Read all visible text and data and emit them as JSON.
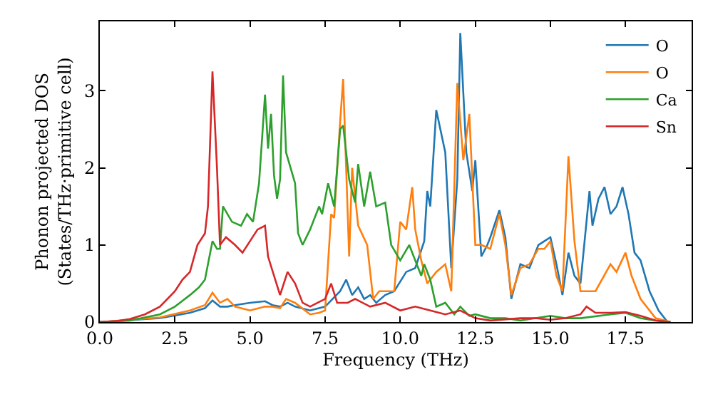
{
  "chart_data": {
    "type": "line",
    "xlabel": "Frequency (THz)",
    "ylabel": "Phonon projected DOS\n(States/THz·primitive cell)",
    "xlim": [
      0,
      19.7
    ],
    "ylim": [
      0,
      3.9
    ],
    "xticks": [
      {
        "value": 0,
        "label": "0.0"
      },
      {
        "value": 2.5,
        "label": "2.5"
      },
      {
        "value": 5,
        "label": "5.0"
      },
      {
        "value": 7.5,
        "label": "7.5"
      },
      {
        "value": 10,
        "label": "10.0"
      },
      {
        "value": 12.5,
        "label": "12.5"
      },
      {
        "value": 15,
        "label": "15.0"
      },
      {
        "value": 17.5,
        "label": "17.5"
      }
    ],
    "yticks": [
      0,
      1,
      2,
      3
    ],
    "legend": "top right",
    "marker": "none",
    "line_style": "solid",
    "series": [
      {
        "name": "O",
        "color": "#1f77b4",
        "x": [
          0,
          2,
          3,
          3.5,
          3.75,
          4.0,
          4.25,
          4.5,
          5,
          5.5,
          5.75,
          6,
          6.25,
          6.5,
          7,
          7.5,
          8.0,
          8.2,
          8.4,
          8.6,
          8.8,
          9,
          9.2,
          9.5,
          9.8,
          10.2,
          10.5,
          10.8,
          10.9,
          11.0,
          11.2,
          11.5,
          11.7,
          11.9,
          12.0,
          12.2,
          12.4,
          12.5,
          12.7,
          12.9,
          13.0,
          13.3,
          13.5,
          13.7,
          14.0,
          14.3,
          14.6,
          14.8,
          15.0,
          15.2,
          15.4,
          15.6,
          15.8,
          16.0,
          16.3,
          16.4,
          16.6,
          16.8,
          17.0,
          17.2,
          17.4,
          17.6,
          17.8,
          18.0,
          18.3,
          18.6,
          18.9
        ],
        "values": [
          0,
          0.05,
          0.12,
          0.18,
          0.28,
          0.2,
          0.2,
          0.22,
          0.25,
          0.27,
          0.22,
          0.2,
          0.25,
          0.2,
          0.15,
          0.2,
          0.4,
          0.55,
          0.35,
          0.45,
          0.3,
          0.35,
          0.25,
          0.35,
          0.4,
          0.65,
          0.7,
          1.05,
          1.7,
          1.5,
          2.75,
          2.2,
          0.7,
          1.85,
          3.75,
          2.2,
          1.7,
          2.1,
          0.85,
          1.0,
          1.1,
          1.45,
          1.1,
          0.3,
          0.75,
          0.7,
          1.0,
          1.05,
          1.1,
          0.75,
          0.35,
          0.9,
          0.6,
          0.5,
          1.7,
          1.25,
          1.6,
          1.75,
          1.4,
          1.5,
          1.75,
          1.4,
          0.9,
          0.8,
          0.4,
          0.15,
          0
        ]
      },
      {
        "name": "O",
        "color": "#ff7f0e",
        "x": [
          0,
          2,
          3,
          3.5,
          3.75,
          4.0,
          4.25,
          4.5,
          5,
          5.5,
          5.75,
          6,
          6.2,
          6.5,
          7,
          7.3,
          7.5,
          7.7,
          7.8,
          8.0,
          8.1,
          8.3,
          8.4,
          8.6,
          8.9,
          9.1,
          9.3,
          9.6,
          9.8,
          10.0,
          10.2,
          10.4,
          10.5,
          10.7,
          10.9,
          11.2,
          11.5,
          11.7,
          11.9,
          12.1,
          12.3,
          12.5,
          12.7,
          13.0,
          13.3,
          13.5,
          13.7,
          14.0,
          14.3,
          14.6,
          14.8,
          15.0,
          15.2,
          15.4,
          15.6,
          15.8,
          16.0,
          16.5,
          17.0,
          17.2,
          17.5,
          17.7,
          18.0,
          18.5,
          19
        ],
        "values": [
          0,
          0.06,
          0.15,
          0.22,
          0.38,
          0.25,
          0.3,
          0.2,
          0.15,
          0.2,
          0.2,
          0.18,
          0.3,
          0.25,
          0.1,
          0.12,
          0.15,
          1.4,
          1.35,
          2.6,
          3.15,
          0.85,
          2.0,
          1.25,
          1.0,
          0.3,
          0.4,
          0.4,
          0.4,
          1.3,
          1.2,
          1.75,
          1.2,
          0.8,
          0.5,
          0.65,
          0.75,
          0.4,
          3.1,
          2.1,
          2.7,
          1.0,
          1.0,
          0.95,
          1.4,
          1.0,
          0.35,
          0.7,
          0.75,
          0.95,
          0.95,
          1.05,
          0.6,
          0.4,
          2.15,
          1.05,
          0.4,
          0.4,
          0.75,
          0.65,
          0.9,
          0.6,
          0.3,
          0.05,
          0
        ]
      },
      {
        "name": "Ca",
        "color": "#2ca02c",
        "x": [
          0,
          1,
          2,
          2.5,
          3,
          3.3,
          3.5,
          3.6,
          3.75,
          3.9,
          4.0,
          4.1,
          4.4,
          4.7,
          4.9,
          5.1,
          5.3,
          5.5,
          5.6,
          5.7,
          5.8,
          5.9,
          6.0,
          6.1,
          6.2,
          6.5,
          6.6,
          6.75,
          7.0,
          7.3,
          7.4,
          7.6,
          7.8,
          8.0,
          8.1,
          8.3,
          8.5,
          8.6,
          8.8,
          9.0,
          9.2,
          9.5,
          9.7,
          10.0,
          10.3,
          10.5,
          10.7,
          10.8,
          11.0,
          11.2,
          11.5,
          11.8,
          12.0,
          12.3,
          12.5,
          13,
          13.5,
          14,
          14.5,
          15,
          15.5,
          16,
          17,
          17.5,
          18,
          18.5,
          19
        ],
        "values": [
          0,
          0.02,
          0.1,
          0.2,
          0.35,
          0.45,
          0.55,
          0.75,
          1.05,
          0.95,
          0.95,
          1.5,
          1.3,
          1.25,
          1.4,
          1.3,
          1.8,
          2.95,
          2.25,
          2.7,
          1.9,
          1.6,
          1.85,
          3.2,
          2.2,
          1.8,
          1.15,
          1.0,
          1.2,
          1.5,
          1.4,
          1.8,
          1.5,
          2.5,
          2.55,
          1.85,
          1.55,
          2.05,
          1.5,
          1.95,
          1.5,
          1.55,
          1.0,
          0.8,
          1.0,
          0.8,
          0.6,
          0.75,
          0.55,
          0.2,
          0.25,
          0.1,
          0.2,
          0.08,
          0.1,
          0.05,
          0.05,
          0.02,
          0.05,
          0.08,
          0.05,
          0.05,
          0.1,
          0.12,
          0.05,
          0.02,
          0
        ]
      },
      {
        "name": "Sn",
        "color": "#d62728",
        "x": [
          0,
          0.5,
          1,
          1.5,
          2,
          2.5,
          2.75,
          3,
          3.25,
          3.5,
          3.6,
          3.75,
          3.9,
          4.0,
          4.2,
          4.5,
          4.75,
          5.0,
          5.25,
          5.5,
          5.6,
          5.8,
          6.0,
          6.25,
          6.5,
          6.75,
          7.0,
          7.25,
          7.5,
          7.7,
          7.9,
          8.25,
          8.5,
          9,
          9.5,
          10,
          10.5,
          11,
          11.5,
          12,
          12.5,
          13,
          14,
          14.5,
          15,
          15.5,
          16,
          16.2,
          16.5,
          17,
          17.5,
          18,
          18.5,
          19
        ],
        "values": [
          0,
          0.01,
          0.04,
          0.1,
          0.2,
          0.4,
          0.55,
          0.65,
          1.0,
          1.15,
          1.5,
          3.25,
          2.0,
          1.0,
          1.1,
          1.0,
          0.9,
          1.05,
          1.2,
          1.25,
          0.85,
          0.6,
          0.35,
          0.65,
          0.5,
          0.25,
          0.2,
          0.25,
          0.3,
          0.5,
          0.25,
          0.25,
          0.3,
          0.2,
          0.25,
          0.15,
          0.2,
          0.15,
          0.1,
          0.15,
          0.05,
          0.02,
          0.05,
          0.05,
          0.03,
          0.05,
          0.1,
          0.2,
          0.12,
          0.12,
          0.13,
          0.08,
          0.02,
          0
        ]
      }
    ]
  }
}
